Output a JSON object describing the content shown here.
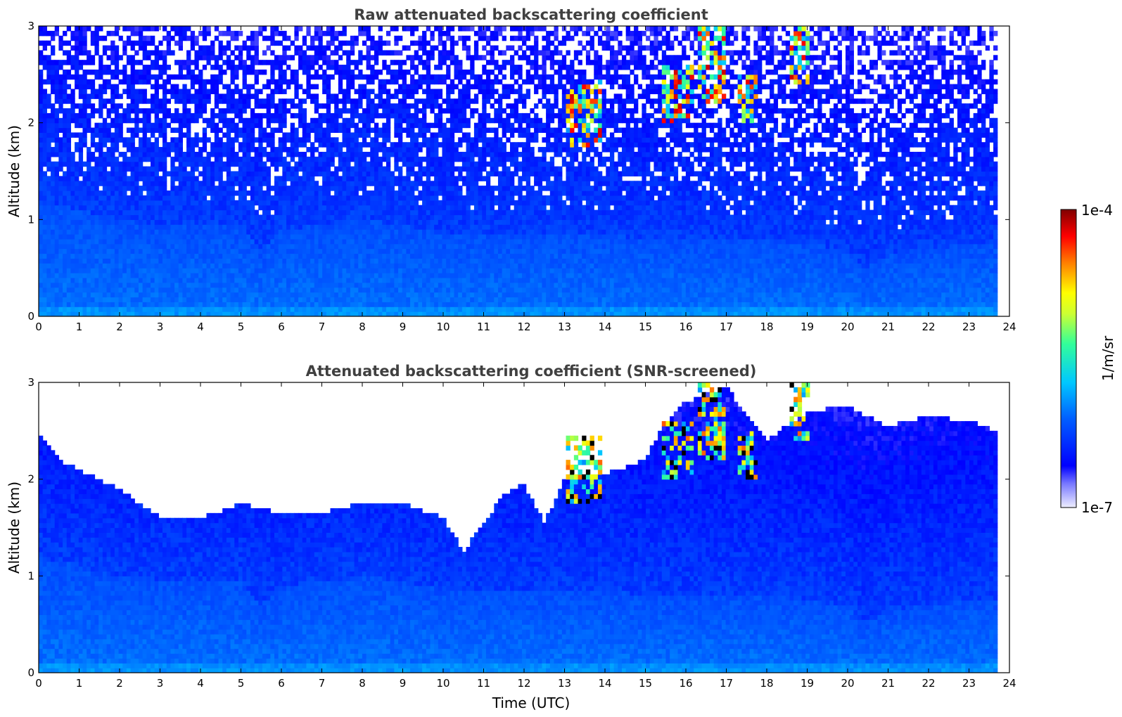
{
  "chart_data": {
    "type": "heatmap",
    "panels": [
      {
        "title": "Raw attenuated backscattering coefficient",
        "ylabel": "Altitude (km)",
        "xlabel": "",
        "xlim": [
          0,
          24
        ],
        "ylim": [
          0,
          3
        ],
        "xticks": [
          "0",
          "1",
          "2",
          "3",
          "4",
          "5",
          "6",
          "7",
          "8",
          "9",
          "10",
          "11",
          "12",
          "13",
          "14",
          "15",
          "16",
          "17",
          "18",
          "19",
          "20",
          "21",
          "22",
          "23",
          "24"
        ],
        "yticks": [
          "0",
          "1",
          "2",
          "3"
        ],
        "data_end_hour": 23.7,
        "screened": false
      },
      {
        "title": "Attenuated backscattering coefficient (SNR-screened)",
        "ylabel": "Altitude (km)",
        "xlabel": "Time (UTC)",
        "xlim": [
          0,
          24
        ],
        "ylim": [
          0,
          3
        ],
        "xticks": [
          "0",
          "1",
          "2",
          "3",
          "4",
          "5",
          "6",
          "7",
          "8",
          "9",
          "10",
          "11",
          "12",
          "13",
          "14",
          "15",
          "16",
          "17",
          "18",
          "19",
          "20",
          "21",
          "22",
          "23",
          "24"
        ],
        "yticks": [
          "0",
          "1",
          "2",
          "3"
        ],
        "data_end_hour": 23.7,
        "screened": true
      }
    ],
    "colorbar": {
      "label": "1/m/sr",
      "max_label": "1e-4",
      "min_label": "1e-7",
      "scale": "log",
      "colormap": "jet"
    },
    "features": {
      "boundary_layer_top_km": [
        [
          0,
          1.2
        ],
        [
          1,
          1.1
        ],
        [
          2,
          1.0
        ],
        [
          3,
          0.95
        ],
        [
          4,
          0.95
        ],
        [
          5,
          0.95
        ],
        [
          5.5,
          0.7
        ],
        [
          6,
          0.9
        ],
        [
          7,
          0.95
        ],
        [
          8,
          1.0
        ],
        [
          9,
          0.95
        ],
        [
          10,
          0.85
        ],
        [
          11,
          0.85
        ],
        [
          12,
          0.85
        ],
        [
          13,
          0.85
        ],
        [
          14,
          0.85
        ],
        [
          15,
          0.8
        ],
        [
          16,
          0.8
        ],
        [
          17,
          0.8
        ],
        [
          18,
          0.8
        ],
        [
          19,
          0.75
        ],
        [
          20,
          0.7
        ],
        [
          20.4,
          0.5
        ],
        [
          21,
          0.65
        ],
        [
          22,
          0.7
        ],
        [
          23,
          0.75
        ],
        [
          23.7,
          0.75
        ]
      ],
      "clouds": [
        {
          "t0": 13.0,
          "t1": 13.9,
          "z0": 1.75,
          "z1": 2.45
        },
        {
          "t0": 15.4,
          "t1": 16.2,
          "z0": 2.0,
          "z1": 2.6
        },
        {
          "t0": 16.3,
          "t1": 17.0,
          "z0": 2.2,
          "z1": 3.0
        },
        {
          "t0": 17.3,
          "t1": 17.8,
          "z0": 2.0,
          "z1": 2.5
        },
        {
          "t0": 18.6,
          "t1": 19.1,
          "z0": 2.4,
          "z1": 3.0
        }
      ],
      "screen_threshold_km": [
        [
          0,
          2.5
        ],
        [
          0.5,
          2.2
        ],
        [
          1,
          2.1
        ],
        [
          1.5,
          2.0
        ],
        [
          2,
          1.9
        ],
        [
          2.5,
          1.75
        ],
        [
          3,
          1.62
        ],
        [
          4,
          1.6
        ],
        [
          5,
          1.75
        ],
        [
          6,
          1.65
        ],
        [
          7,
          1.65
        ],
        [
          8,
          1.75
        ],
        [
          9,
          1.75
        ],
        [
          10,
          1.6
        ],
        [
          10.5,
          1.25
        ],
        [
          11,
          1.55
        ],
        [
          11.5,
          1.85
        ],
        [
          12,
          1.95
        ],
        [
          12.5,
          1.55
        ],
        [
          13,
          2.0
        ],
        [
          14,
          2.05
        ],
        [
          15,
          2.2
        ],
        [
          15.5,
          2.6
        ],
        [
          16,
          2.8
        ],
        [
          17,
          2.95
        ],
        [
          18,
          2.4
        ],
        [
          19,
          2.7
        ],
        [
          20,
          2.75
        ],
        [
          21,
          2.55
        ],
        [
          22,
          2.65
        ],
        [
          23,
          2.6
        ],
        [
          23.7,
          2.5
        ]
      ]
    }
  }
}
